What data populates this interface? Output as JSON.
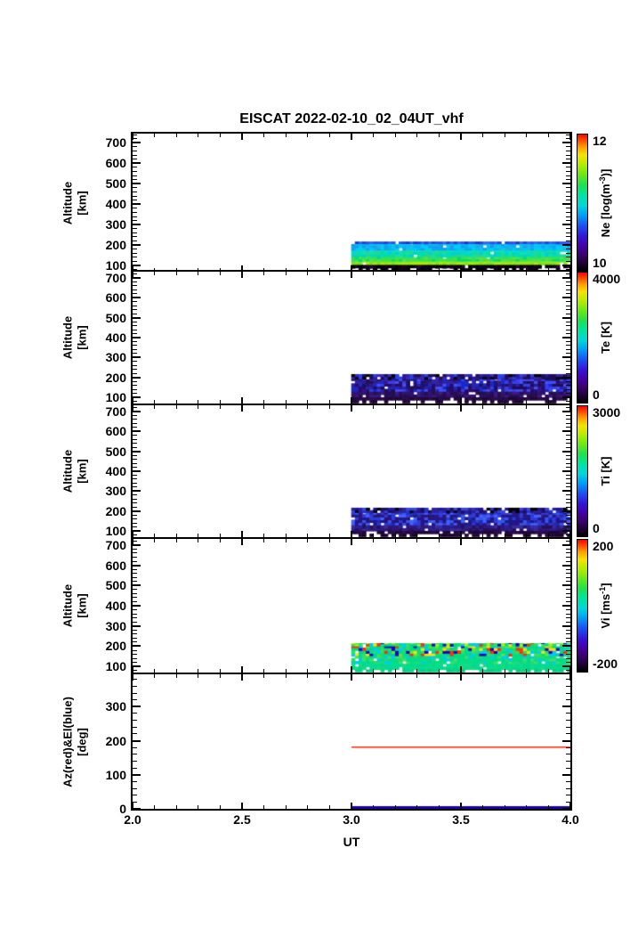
{
  "chart_data": {
    "type": "heatmap",
    "title": "EISCAT 2022-02-10_02_04UT_vhf",
    "xlabel": "UT",
    "xlim": [
      2.0,
      4.0
    ],
    "x_major_ticks": [
      2.0,
      2.5,
      3.0,
      3.5,
      4.0
    ],
    "x_tick_labels": [
      "2.0",
      "2.5",
      "3.0",
      "3.5",
      "4.0"
    ],
    "x_minor_step": 0.1,
    "seed": 20220210,
    "cbar_stops": [
      [
        0.0,
        "#000000"
      ],
      [
        0.05,
        "#1c0030"
      ],
      [
        0.12,
        "#3c0070"
      ],
      [
        0.18,
        "#4400a8"
      ],
      [
        0.25,
        "#3414d8"
      ],
      [
        0.33,
        "#1c50f4"
      ],
      [
        0.41,
        "#00a0f8"
      ],
      [
        0.48,
        "#00d8d8"
      ],
      [
        0.56,
        "#00e49c"
      ],
      [
        0.63,
        "#20e050"
      ],
      [
        0.7,
        "#64e818"
      ],
      [
        0.78,
        "#b4ec00"
      ],
      [
        0.85,
        "#f4e400"
      ],
      [
        0.91,
        "#ff9c00"
      ],
      [
        0.96,
        "#ff4400"
      ],
      [
        1.0,
        "#ff0000"
      ]
    ],
    "panels": [
      {
        "id": "ne",
        "quantity": "Ne",
        "ylabel": [
          "Altitude",
          "[km]"
        ],
        "ylim": [
          70,
          745
        ],
        "y_major_ticks": [
          100,
          200,
          300,
          400,
          500,
          600,
          700
        ],
        "y_minor_step": 20,
        "colorbar": {
          "lim": [
            10,
            12
          ],
          "tick_top": "12",
          "tick_bottom": "10",
          "label_pre": "Ne [log(m",
          "label_sup": "-3",
          "label_post": ")]"
        },
        "band": {
          "trange": [
            3.0,
            4.0
          ],
          "dt": 0.0167,
          "dalt": 14,
          "layers": [
            {
              "alt": [
                204,
                216
              ],
              "colors": [
                "#2050e8",
                "#1e3cd8",
                "#2a64f0",
                "#1830c0",
                "#2850f8"
              ],
              "white": 0.06
            },
            {
              "alt": [
                172,
                204
              ],
              "colors": [
                "#00b4f4",
                "#00c8f0",
                "#10a0f0",
                "#00ccf8",
                "#20b0ee"
              ],
              "white": 0.02
            },
            {
              "alt": [
                140,
                172
              ],
              "colors": [
                "#00dcc0",
                "#00e09c",
                "#20d890",
                "#00d0d4",
                "#10e0b0"
              ],
              "white": 0.02
            },
            {
              "alt": [
                118,
                140
              ],
              "colors": [
                "#30e060",
                "#58e048",
                "#00dc74",
                "#40e43c"
              ],
              "white": 0.02
            },
            {
              "alt": [
                102,
                118
              ],
              "colors": [
                "#94e414",
                "#b0e800",
                "#7ce020",
                "#a4ec00"
              ],
              "white": 0.04
            },
            {
              "alt": [
                88,
                102
              ],
              "colors": [
                "#140024",
                "#000000",
                "#240638",
                "#0a0014"
              ],
              "white": 0.05
            },
            {
              "alt": [
                72,
                88
              ],
              "colors": [
                "#000000",
                "#12021f"
              ],
              "white": 0.55
            }
          ]
        }
      },
      {
        "id": "te",
        "quantity": "Te",
        "ylabel": [
          "Altitude",
          "[km]"
        ],
        "ylim": [
          70,
          730
        ],
        "y_major_ticks": [
          100,
          200,
          300,
          400,
          500,
          600,
          700
        ],
        "y_minor_step": 20,
        "colorbar": {
          "lim": [
            0,
            4000
          ],
          "tick_top": "4000",
          "tick_bottom": "0",
          "label_pre": "Te [K]",
          "label_sup": "",
          "label_post": ""
        },
        "band": {
          "trange": [
            3.0,
            4.0
          ],
          "dt": 0.0167,
          "dalt": 14,
          "layers": [
            {
              "alt": [
                190,
                216
              ],
              "colors": [
                "#281890",
                "#2f20aa",
                "#180e5e",
                "#3a28b4",
                "#000000",
                "#2a40e8",
                "#240a50"
              ],
              "white": 0.08
            },
            {
              "alt": [
                128,
                190
              ],
              "colors": [
                "#2a22a8",
                "#3340ee",
                "#1d1478",
                "#2a0a66",
                "#4050f8",
                "#210c56",
                "#1828c8",
                "#30188c"
              ],
              "white": 0.03
            },
            {
              "alt": [
                100,
                128
              ],
              "colors": [
                "#321270",
                "#2a0a58",
                "#3b1a80",
                "#241048",
                "#2c1464"
              ],
              "white": 0.05
            },
            {
              "alt": [
                86,
                100
              ],
              "colors": [
                "#2d0a4e",
                "#240840",
                "#1d0736"
              ],
              "white": 0.1
            },
            {
              "alt": [
                72,
                86
              ],
              "colors": [
                "#240840",
                "#1a0530"
              ],
              "white": 0.45
            }
          ]
        }
      },
      {
        "id": "ti",
        "quantity": "Ti",
        "ylabel": [
          "Altitude",
          "[km]"
        ],
        "ylim": [
          70,
          730
        ],
        "y_major_ticks": [
          100,
          200,
          300,
          400,
          500,
          600,
          700
        ],
        "y_minor_step": 20,
        "colorbar": {
          "lim": [
            0,
            3000
          ],
          "tick_top": "3000",
          "tick_bottom": "0",
          "label_pre": "Ti [K]",
          "label_sup": "",
          "label_post": ""
        },
        "band": {
          "trange": [
            3.0,
            4.0
          ],
          "dt": 0.0167,
          "dalt": 14,
          "layers": [
            {
              "alt": [
                190,
                216
              ],
              "colors": [
                "#2a1a9c",
                "#2334cc",
                "#190f60",
                "#000000",
                "#3348dc",
                "#241482",
                "#2a20a0"
              ],
              "white": 0.08
            },
            {
              "alt": [
                128,
                190
              ],
              "colors": [
                "#2a3ae0",
                "#3355ee",
                "#241489",
                "#1d2cb2",
                "#4060ff",
                "#2a1278",
                "#303ad0",
                "#201880"
              ],
              "white": 0.03
            },
            {
              "alt": [
                100,
                128
              ],
              "colors": [
                "#321672",
                "#2a2092",
                "#261056",
                "#3a2a9c",
                "#2c1880"
              ],
              "white": 0.05
            },
            {
              "alt": [
                86,
                100
              ],
              "colors": [
                "#2c0a4c",
                "#220838",
                "#1d0735"
              ],
              "white": 0.1
            },
            {
              "alt": [
                72,
                86
              ],
              "colors": [
                "#220838",
                "#180528"
              ],
              "white": 0.45
            }
          ]
        }
      },
      {
        "id": "vi",
        "quantity": "Vi",
        "ylabel": [
          "Altitude",
          "[km]"
        ],
        "ylim": [
          70,
          730
        ],
        "y_major_ticks": [
          100,
          200,
          300,
          400,
          500,
          600,
          700
        ],
        "y_minor_step": 20,
        "colorbar": {
          "lim": [
            -200,
            200
          ],
          "tick_top": "200",
          "tick_bottom": "-200",
          "label_pre": "Vi [ms",
          "label_sup": "-1",
          "label_post": "]"
        },
        "band": {
          "trange": [
            3.0,
            4.0
          ],
          "dt": 0.0167,
          "dalt": 14,
          "layers": [
            {
              "alt": [
                198,
                214
              ],
              "colors": [
                "#00e080",
                "#30e060",
                "#ffe000",
                "#00dc78",
                "#40e040",
                "#ff3000",
                "#00c8ff",
                "#2000c0",
                "#a0f020",
                "#20dc70",
                "#00e080"
              ],
              "white": 0.07
            },
            {
              "alt": [
                150,
                198
              ],
              "colors": [
                "#00dc78",
                "#30e060",
                "#00d0a0",
                "#60e838",
                "#00c8ff",
                "#ffe000",
                "#20dc70",
                "#00dc88",
                "#00e080",
                "#2000c0",
                "#ff3000",
                "#00dc80"
              ],
              "white": 0.03
            },
            {
              "alt": [
                112,
                150
              ],
              "colors": [
                "#00dc88",
                "#20dc70",
                "#00d898",
                "#40e060",
                "#00e07c",
                "#00c8ff"
              ],
              "white": 0.04
            },
            {
              "alt": [
                84,
                112
              ],
              "colors": [
                "#00dc90",
                "#00d88c",
                "#10dc80"
              ],
              "white": 0.03
            },
            {
              "alt": [
                72,
                84
              ],
              "colors": [
                "#00d88c",
                "#00cc84"
              ],
              "white": 0.45
            }
          ]
        }
      },
      {
        "id": "azel",
        "quantity": "Az-El",
        "ylabel": [
          "Az(red)&El(blue)",
          "[deg]"
        ],
        "ylim": [
          0,
          395
        ],
        "y_major_ticks": [
          0,
          100,
          200,
          300
        ],
        "y_minor_step": 20,
        "series": [
          {
            "name": "Az",
            "color": "#ff2200",
            "value": 183,
            "trange": [
              3.0,
              4.0
            ],
            "width": 1.5
          },
          {
            "name": "El",
            "color": "#1c00aa",
            "value": 2,
            "trange": [
              3.0,
              4.0
            ],
            "width": 3
          }
        ]
      }
    ]
  }
}
